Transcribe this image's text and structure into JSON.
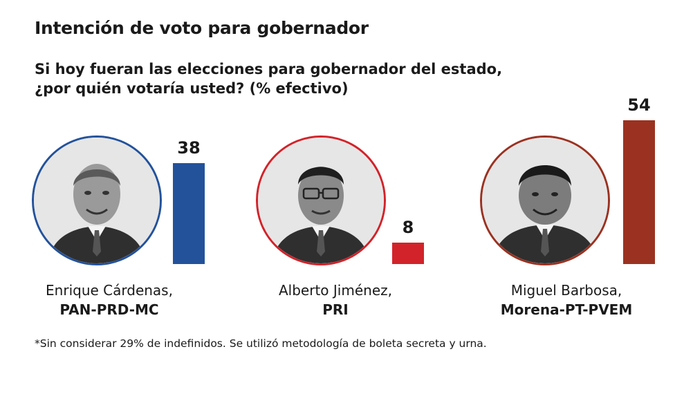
{
  "title": "Intención de voto para gobernador",
  "subtitle": {
    "line1": "Si hoy fueran las elecciones para gobernador del estado,",
    "line2": "¿por quién votaría usted? (% efectivo)"
  },
  "chart_data": {
    "type": "bar",
    "title": "Intención de voto para gobernador",
    "subtitle": "Si hoy fueran las elecciones para gobernador del estado, ¿por quién votaría usted? (% efectivo)",
    "categories": [
      "Enrique Cárdenas, PAN-PRD-MC",
      "Alberto Jiménez, PRI",
      "Miguel Barbosa, Morena-PT-PVEM"
    ],
    "values": [
      38,
      8,
      54
    ],
    "ylim": [
      0,
      54
    ],
    "grid": false,
    "bars": [
      {
        "name": "Enrique Cárdenas,",
        "party": "PAN-PRD-MC",
        "value": 38,
        "color": "#23529b"
      },
      {
        "name": "Alberto Jiménez,",
        "party": "PRI",
        "value": 8,
        "color": "#d2232a"
      },
      {
        "name": "Miguel Barbosa,",
        "party": "Morena-PT-PVEM",
        "value": 54,
        "color": "#9b3221"
      }
    ]
  },
  "footnote": "*Sin considerar 29% de indefinidos. Se utilizó metodología de boleta secreta y urna."
}
